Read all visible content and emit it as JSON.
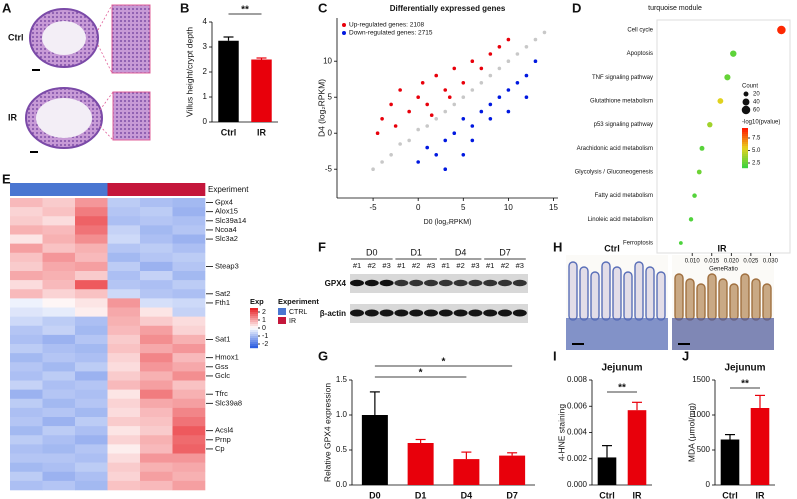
{
  "panel_labels": [
    "A",
    "B",
    "C",
    "D",
    "E",
    "F",
    "G",
    "H",
    "I",
    "J"
  ],
  "histology_a": {
    "labels": [
      "Ctrl",
      "IR"
    ]
  },
  "western_blot": {
    "time_points": [
      "D0",
      "D1",
      "D4",
      "D7"
    ],
    "lanes": [
      "#1",
      "#2",
      "#3",
      "#1",
      "#2",
      "#3",
      "#1",
      "#2",
      "#3",
      "#1",
      "#2",
      "#3"
    ],
    "proteins": [
      "GPX4",
      "β-actin"
    ]
  },
  "histology_h": {
    "labels": [
      "Ctrl",
      "IR"
    ]
  },
  "chart_data": [
    {
      "type": "bar",
      "ylabel": "Villus height/crypt depth",
      "categories": [
        "Ctrl",
        "IR"
      ],
      "values": [
        3.25,
        2.5
      ],
      "errors": [
        0.15,
        0.06
      ],
      "colors": [
        "#000000",
        "#e8000b"
      ],
      "ylim": [
        0,
        4
      ],
      "yticks": [
        0,
        1,
        2,
        3,
        4
      ],
      "significance": [
        "**"
      ]
    },
    {
      "type": "scatter",
      "title": "Differentially expressed genes",
      "xlabel": "D0 (log₂RPKM)",
      "ylabel": "D4 (log₂RPKM)",
      "xlim": [
        -9,
        15.5
      ],
      "ylim": [
        -9,
        16
      ],
      "xticks": [
        -5,
        0,
        5,
        10,
        15
      ],
      "yticks": [
        -5,
        0,
        5,
        10
      ],
      "series": [
        {
          "color": "#c8c8c8",
          "x": [
            -5,
            -3,
            -1,
            1,
            3,
            5,
            7,
            9,
            11,
            13,
            14,
            -4,
            2,
            4,
            6,
            8,
            10,
            12,
            0,
            -2
          ],
          "values": [
            -5,
            -3,
            -1,
            1,
            3,
            5,
            7,
            9,
            11,
            13,
            14,
            -4,
            2,
            4,
            6,
            8,
            10,
            12,
            0.5,
            -1.5
          ]
        },
        {
          "name": "Up-regulated genes: 2108",
          "color": "#e8000b",
          "x": [
            -4,
            -3,
            -2,
            -1,
            0,
            0.5,
            1,
            2,
            3,
            4,
            5,
            6,
            7,
            8,
            9,
            -4.5,
            1.5,
            10,
            3.5,
            -2.5
          ],
          "values": [
            2,
            4,
            6,
            3,
            5,
            7,
            4,
            8,
            6,
            9,
            7,
            10,
            9,
            11,
            12,
            0,
            2.5,
            13,
            5,
            1
          ]
        },
        {
          "name": "Down-regulated genes: 2715",
          "color": "#0018e0",
          "x": [
            0,
            1,
            2,
            3,
            4,
            5,
            5,
            6,
            7,
            8,
            9,
            10,
            11,
            12,
            13,
            3,
            6,
            8,
            10,
            12
          ],
          "values": [
            -4,
            -2,
            -3,
            -1,
            0,
            2,
            -3,
            1,
            3,
            4,
            5,
            6,
            7,
            8,
            10,
            -5,
            -1,
            2,
            3,
            5
          ]
        }
      ]
    },
    {
      "type": "dot",
      "title": "turquoise module",
      "xlabel": "GeneRatio",
      "categories": [
        "Cell cycle",
        "Apoptosis",
        "TNF signaling pathway",
        "Glutathione metabolism",
        "p53 signaling pathway",
        "Arachidonic acid metabolism",
        "Glycolysis / Gluconeogenesis",
        "Fatty acid metabolism",
        "Linoleic acid metabolism",
        "Ferroptosis"
      ],
      "values": [
        0.0328,
        0.0205,
        0.019,
        0.0172,
        0.0145,
        0.0125,
        0.0118,
        0.0106,
        0.0097,
        0.0071
      ],
      "counts": [
        60,
        34,
        31,
        28,
        24,
        20,
        19,
        17,
        16,
        12
      ],
      "neg_log10_pvalues": [
        9.2,
        2.2,
        2.4,
        5.3,
        3.8,
        2.1,
        2.6,
        2.0,
        1.9,
        1.8
      ],
      "xlim": [
        0.001,
        0.035
      ],
      "xticks": [
        {
          "value": 0.01,
          "label": "0.010"
        },
        {
          "value": 0.015,
          "label": "0.015"
        },
        {
          "value": 0.02,
          "label": "0.020"
        },
        {
          "value": 0.025,
          "label": "0.025"
        },
        {
          "value": 0.03,
          "label": "0.030"
        }
      ],
      "size_legend": {
        "title": "Count",
        "values": [
          20,
          40,
          60
        ]
      },
      "color_legend": {
        "title": "-log10(pvalue)",
        "ticks": [
          7.5,
          {
            "value": 5,
            "label": "5.0"
          },
          2.5
        ]
      },
      "clim": [
        1.5,
        9.5
      ],
      "colors": [
        "#3fd33f",
        "#e8d21c",
        "#ff1a00"
      ]
    },
    {
      "type": "heatmap",
      "experiment_label": "Experiment",
      "groups": [
        {
          "name": "CTRL",
          "color": "#4a76d1"
        },
        {
          "name": "IR",
          "color": "#c4163b"
        }
      ],
      "column_group": [
        0,
        0,
        0,
        1,
        1,
        1
      ],
      "row_labels": [
        "Gpx4",
        "Alox15",
        "Slc39a14",
        "Ncoa4",
        "Slc3a2",
        null,
        null,
        "Steap3",
        null,
        null,
        "Sat2",
        "Fth1",
        null,
        null,
        null,
        "Sat1",
        null,
        "Hmox1",
        "Gss",
        "Gclc",
        null,
        "Tfrc",
        "Slc39a8",
        null,
        null,
        "Acsl4",
        "Prnp",
        "Cp",
        null,
        null,
        null,
        null
      ],
      "values": [
        [
          0.8,
          0.6,
          1.2,
          -0.8,
          -1,
          -1.1
        ],
        [
          0.5,
          0.7,
          1.5,
          -0.9,
          -0.8,
          -1.2
        ],
        [
          0.6,
          0.4,
          1.8,
          -1.0,
          -0.9,
          -1.0
        ],
        [
          0.9,
          0.8,
          1.6,
          -0.7,
          -1.1,
          -0.9
        ],
        [
          0.3,
          0.9,
          1.3,
          -0.6,
          -1.0,
          -1.2
        ],
        [
          1.1,
          0.7,
          0.9,
          -0.9,
          -0.8,
          -1.0
        ],
        [
          0.7,
          1.2,
          0.8,
          -1.1,
          -0.9,
          -0.8
        ],
        [
          0.6,
          1.0,
          1.1,
          -0.8,
          -1.2,
          -0.9
        ],
        [
          1.0,
          0.9,
          0.6,
          -1.0,
          -0.7,
          -1.1
        ],
        [
          0.4,
          0.8,
          1.9,
          -0.9,
          -1.0,
          -0.8
        ],
        [
          0.8,
          0.5,
          0.7,
          -0.6,
          -0.9,
          -1.0
        ],
        [
          -0.2,
          0.1,
          0.3,
          1.2,
          -0.5,
          -0.6
        ],
        [
          -0.4,
          -0.3,
          0.2,
          1.0,
          0.3,
          -0.7
        ],
        [
          -0.6,
          -0.8,
          -1.0,
          0.9,
          0.6,
          0.4
        ],
        [
          -0.9,
          -0.7,
          -1.1,
          0.8,
          1.1,
          0.5
        ],
        [
          -1.0,
          -1.2,
          -0.9,
          0.6,
          1.3,
          0.9
        ],
        [
          -0.8,
          -1.0,
          -1.1,
          0.7,
          1.0,
          1.2
        ],
        [
          -1.1,
          -0.9,
          -1.0,
          0.5,
          1.4,
          0.8
        ],
        [
          -0.9,
          -1.1,
          -0.8,
          0.4,
          1.2,
          1.0
        ],
        [
          -1.0,
          -0.8,
          -1.2,
          0.6,
          0.9,
          1.3
        ],
        [
          -0.7,
          -1.0,
          -0.9,
          0.8,
          1.1,
          0.7
        ],
        [
          -1.2,
          -0.9,
          -1.0,
          0.3,
          1.5,
          0.9
        ],
        [
          -0.8,
          -1.1,
          -0.9,
          0.5,
          1.0,
          1.1
        ],
        [
          -1.0,
          -0.9,
          -1.1,
          0.4,
          0.8,
          1.4
        ],
        [
          -0.9,
          -1.2,
          -0.8,
          0.6,
          0.7,
          1.6
        ],
        [
          -1.1,
          -0.8,
          -1.0,
          0.3,
          0.6,
          1.9
        ],
        [
          -0.8,
          -1.0,
          -1.2,
          0.5,
          0.9,
          1.7
        ],
        [
          -1.0,
          -1.1,
          -0.9,
          0.2,
          0.8,
          1.8
        ],
        [
          -0.9,
          -0.9,
          -1.0,
          0.4,
          1.2,
          1.2
        ],
        [
          -1.1,
          -1.0,
          -0.8,
          0.6,
          0.9,
          1.0
        ],
        [
          -0.8,
          -1.2,
          -1.0,
          0.5,
          1.1,
          0.9
        ],
        [
          -1.0,
          -0.9,
          -1.1,
          0.7,
          0.8,
          1.1
        ]
      ],
      "clim": [
        -2.5,
        2.5
      ],
      "colors": [
        "#2f5fe0",
        "#ffffff",
        "#e8252a"
      ],
      "colorbar": {
        "title": "Exp",
        "ticks": [
          2,
          1,
          0,
          -1,
          -2
        ]
      }
    },
    {
      "type": "bar",
      "ylabel": "Relative GPX4 expression",
      "categories": [
        "D0",
        "D1",
        "D4",
        "D7"
      ],
      "values": [
        1.0,
        0.6,
        0.37,
        0.42
      ],
      "errors": [
        0.33,
        0.05,
        0.1,
        0.04
      ],
      "colors": [
        "#000000",
        "#e8000b",
        "#e8000b",
        "#e8000b"
      ],
      "ylim": [
        0,
        1.5
      ],
      "yticks": [
        {
          "value": 0,
          "label": "0.0"
        },
        0.5,
        {
          "value": 1,
          "label": "1.0"
        },
        1.5
      ],
      "significance": [
        "*",
        "*"
      ]
    },
    {
      "type": "bar",
      "title": "Jejunum",
      "ylabel": "4-HNE staining",
      "categories": [
        "Ctrl",
        "IR"
      ],
      "values": [
        0.0021,
        0.0057
      ],
      "errors": [
        0.0009,
        0.0006
      ],
      "colors": [
        "#000000",
        "#e8000b"
      ],
      "ylim": [
        0,
        0.008
      ],
      "yticks": [
        {
          "value": 0,
          "label": "0.000"
        },
        {
          "value": 0.002,
          "label": "0.002"
        },
        {
          "value": 0.004,
          "label": "0.004"
        },
        {
          "value": 0.006,
          "label": "0.006"
        },
        {
          "value": 0.008,
          "label": "0.008"
        }
      ],
      "significance": [
        "**"
      ]
    },
    {
      "type": "bar",
      "title": "Jejunum",
      "ylabel": "MDA (μmol/mg)",
      "categories": [
        "Ctrl",
        "IR"
      ],
      "values": [
        650,
        1100
      ],
      "errors": [
        70,
        180
      ],
      "colors": [
        "#000000",
        "#e8000b"
      ],
      "ylim": [
        0,
        1500
      ],
      "yticks": [
        0,
        500,
        1000,
        1500
      ],
      "significance": [
        "**"
      ]
    }
  ]
}
